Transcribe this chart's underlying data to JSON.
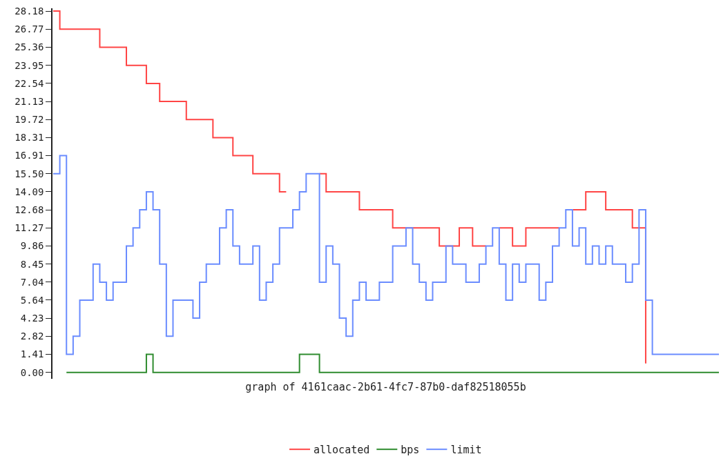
{
  "chart_data": {
    "type": "step",
    "xlabel": "graph of 4161caac-2b61-4fc7-87b0-daf82518055b",
    "categories": [
      null,
      null,
      null,
      null,
      null,
      null,
      null,
      null,
      null,
      null,
      null,
      null,
      null,
      null,
      null,
      null,
      null,
      null,
      null,
      null,
      null,
      null,
      null,
      null,
      null,
      null,
      null,
      null,
      null,
      null,
      null,
      null,
      null,
      null,
      null,
      null,
      null,
      null,
      null,
      null,
      null,
      null,
      null,
      null,
      null,
      null,
      null,
      null,
      null,
      null,
      null,
      null,
      null,
      null,
      null,
      null,
      null,
      null,
      null,
      null,
      null,
      null,
      null,
      null,
      null,
      null,
      null,
      null,
      null,
      null,
      null,
      null,
      null,
      null,
      null,
      null,
      null,
      null,
      null,
      null,
      null,
      null,
      null,
      null,
      null,
      null,
      null,
      null,
      null,
      null,
      null,
      null,
      null,
      null,
      null,
      null,
      null,
      null,
      null,
      null,
      null
    ],
    "series": [
      {
        "name": "allocated",
        "color": "#ff4444",
        "values": [
          28.18,
          26.77,
          26.77,
          26.77,
          26.77,
          26.77,
          26.77,
          25.36,
          25.36,
          25.36,
          25.36,
          23.95,
          23.95,
          23.95,
          22.54,
          22.54,
          21.13,
          21.13,
          21.13,
          21.13,
          19.72,
          19.72,
          19.72,
          19.72,
          18.31,
          18.31,
          18.31,
          16.91,
          16.91,
          16.91,
          15.5,
          15.5,
          15.5,
          15.5,
          14.09,
          14.09,
          null,
          null,
          null,
          null,
          15.5,
          14.09,
          14.09,
          14.09,
          14.09,
          14.09,
          12.68,
          12.68,
          12.68,
          12.68,
          12.68,
          11.27,
          11.27,
          11.27,
          11.27,
          11.27,
          11.27,
          11.27,
          9.86,
          9.86,
          9.86,
          11.27,
          11.27,
          9.86,
          9.86,
          9.86,
          null,
          11.27,
          11.27,
          9.86,
          9.86,
          11.27,
          11.27,
          11.27,
          11.27,
          11.27,
          11.27,
          null,
          12.68,
          12.68,
          14.09,
          14.09,
          14.09,
          12.68,
          12.68,
          12.68,
          12.68,
          11.27,
          11.27,
          0.7,
          null,
          null,
          null,
          null,
          null,
          null,
          null,
          null,
          null,
          null,
          null
        ]
      },
      {
        "name": "bps",
        "color": "#2e8b2e",
        "values": [
          null,
          null,
          0,
          0,
          0,
          0,
          0,
          0,
          0,
          0,
          0,
          0,
          0,
          0,
          1.41,
          0,
          0,
          0,
          0,
          0,
          0,
          0,
          0,
          0,
          0,
          0,
          0,
          0,
          0,
          0,
          0,
          0,
          0,
          0,
          0,
          0,
          0,
          1.41,
          1.41,
          1.41,
          0,
          0,
          0,
          0,
          0,
          0,
          0,
          0,
          0,
          0,
          0,
          0,
          0,
          0,
          0,
          0,
          0,
          0,
          0,
          0,
          0,
          0,
          0,
          0,
          0,
          0,
          0,
          0,
          0,
          0,
          0,
          0,
          0,
          0,
          0,
          0,
          0,
          0,
          0,
          0,
          0,
          0,
          0,
          0,
          0,
          0,
          0,
          0,
          0,
          0,
          0,
          0,
          0,
          0,
          0,
          0,
          0,
          0,
          0,
          0,
          0
        ]
      },
      {
        "name": "limit",
        "color": "#6a8cff",
        "values": [
          15.5,
          16.91,
          1.41,
          2.82,
          5.64,
          5.64,
          8.45,
          7.04,
          5.64,
          7.04,
          7.04,
          9.86,
          11.27,
          12.68,
          14.09,
          12.68,
          8.45,
          2.82,
          5.64,
          5.64,
          5.64,
          4.23,
          7.04,
          8.45,
          8.45,
          11.27,
          12.68,
          9.86,
          8.45,
          8.45,
          9.86,
          5.64,
          7.04,
          8.45,
          11.27,
          11.27,
          12.68,
          14.09,
          15.5,
          15.5,
          7.04,
          9.86,
          8.45,
          4.23,
          2.82,
          5.64,
          7.04,
          5.64,
          5.64,
          7.04,
          7.04,
          9.86,
          9.86,
          11.27,
          8.45,
          7.04,
          5.64,
          7.04,
          7.04,
          9.86,
          8.45,
          8.45,
          7.04,
          7.04,
          8.45,
          9.86,
          11.27,
          8.45,
          5.64,
          8.45,
          7.04,
          8.45,
          8.45,
          5.64,
          7.04,
          9.86,
          11.27,
          12.68,
          9.86,
          11.27,
          8.45,
          9.86,
          8.45,
          9.86,
          8.45,
          8.45,
          7.04,
          8.45,
          12.68,
          5.64,
          1.41,
          1.41,
          1.41,
          1.41,
          1.41,
          1.41,
          1.41,
          1.41,
          1.41,
          1.41,
          1.41
        ]
      }
    ],
    "ylim": [
      -0.5,
      28.4
    ],
    "yticks": [
      {
        "value": 0,
        "label": "0.00"
      },
      1.41,
      2.82,
      4.23,
      5.64,
      7.04,
      8.45,
      9.86,
      11.27,
      12.68,
      14.09,
      {
        "value": 15.5,
        "label": "15.50"
      },
      16.91,
      18.31,
      19.72,
      21.13,
      22.54,
      23.95,
      25.36,
      26.77,
      28.18
    ],
    "tick_labels": "y",
    "grid": false,
    "legend": "bottom",
    "line_style": "solid",
    "marker": "none"
  }
}
